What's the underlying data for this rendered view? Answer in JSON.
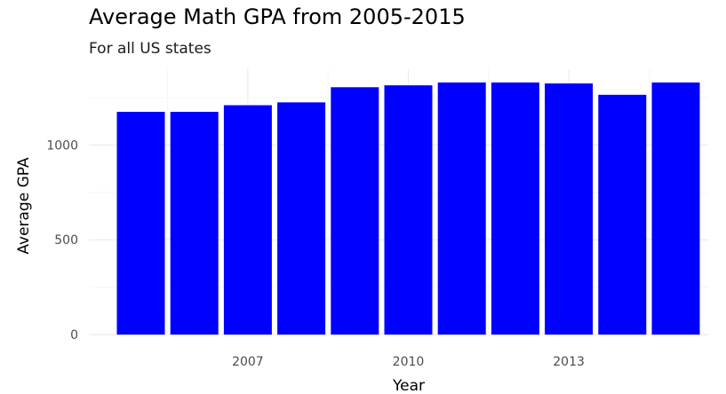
{
  "chart_data": {
    "type": "bar",
    "title": "Average Math GPA from 2005-2015",
    "subtitle": "For all US states",
    "xlabel": "Year",
    "ylabel": "Average GPA",
    "categories": [
      2005,
      2006,
      2007,
      2008,
      2009,
      2010,
      2011,
      2012,
      2013,
      2014,
      2015
    ],
    "values": [
      1175,
      1175,
      1210,
      1225,
      1305,
      1315,
      1330,
      1330,
      1325,
      1265,
      1330
    ],
    "x_ticks": [
      "2007",
      "2010",
      "2013"
    ],
    "y_ticks": [
      "0",
      "500",
      "1000"
    ],
    "ylim": [
      0,
      1400
    ],
    "bar_color": "#0000ff",
    "grid": true,
    "legend": false
  }
}
